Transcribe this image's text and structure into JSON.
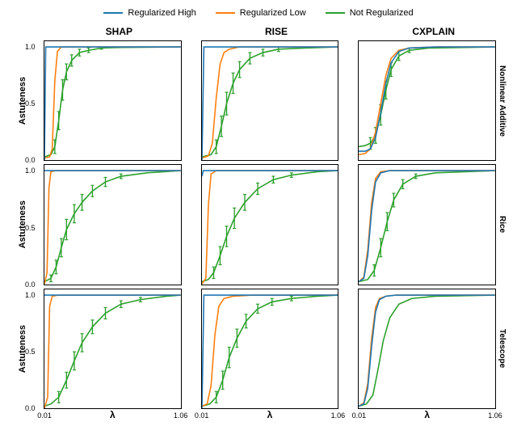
{
  "legend": {
    "items": [
      {
        "label": "Regularized High",
        "color": "#1f77b4"
      },
      {
        "label": "Regularized Low",
        "color": "#ff7f0e"
      },
      {
        "label": "Not Regularized",
        "color": "#2ca02c"
      }
    ]
  },
  "layout": {
    "rows": [
      "Nonlinear Additive",
      "Rice",
      "Telescope"
    ],
    "cols": [
      "SHAP",
      "RISE",
      "CXPLAIN"
    ],
    "ylabel": "Astuteness",
    "xlabel": "λ",
    "ylim": [
      0.0,
      1.05
    ],
    "xlim": [
      0.01,
      1.06
    ],
    "yticks": [
      0.0,
      0.5,
      1.0
    ],
    "ytick_labels": [
      "0.0",
      "0.5",
      "1.0"
    ],
    "xticks_labels": [
      "0.01",
      "1.06"
    ],
    "series_colors": {
      "high": "#1f77b4",
      "low": "#ff7f0e",
      "not": "#2ca02c"
    },
    "line_width": 1.6,
    "error_bar_color": "#2ca02c",
    "background_color": "#ffffff"
  },
  "panels": [
    {
      "row": 0,
      "col": 0,
      "series": {
        "high": [
          [
            0.01,
            0.0
          ],
          [
            0.02,
            1.0
          ],
          [
            1.06,
            1.0
          ]
        ],
        "low": [
          [
            0.01,
            0.02
          ],
          [
            0.05,
            0.03
          ],
          [
            0.07,
            0.1
          ],
          [
            0.09,
            0.7
          ],
          [
            0.11,
            0.96
          ],
          [
            0.14,
            1.0
          ],
          [
            1.06,
            1.0
          ]
        ],
        "not": [
          [
            0.01,
            0.03
          ],
          [
            0.06,
            0.05
          ],
          [
            0.09,
            0.12
          ],
          [
            0.12,
            0.35
          ],
          [
            0.15,
            0.62
          ],
          [
            0.18,
            0.78
          ],
          [
            0.22,
            0.88
          ],
          [
            0.28,
            0.95
          ],
          [
            0.35,
            0.97
          ],
          [
            0.45,
            0.99
          ],
          [
            0.6,
            0.995
          ],
          [
            1.06,
            1.0
          ]
        ]
      },
      "error_bars": [
        [
          0.09,
          0.12,
          0.06
        ],
        [
          0.12,
          0.35,
          0.08
        ],
        [
          0.15,
          0.62,
          0.09
        ],
        [
          0.18,
          0.78,
          0.07
        ],
        [
          0.22,
          0.88,
          0.05
        ],
        [
          0.28,
          0.95,
          0.03
        ],
        [
          0.35,
          0.97,
          0.02
        ],
        [
          0.45,
          0.99,
          0.01
        ]
      ]
    },
    {
      "row": 0,
      "col": 1,
      "series": {
        "high": [
          [
            0.01,
            0.0
          ],
          [
            0.025,
            1.0
          ],
          [
            1.06,
            1.0
          ]
        ],
        "low": [
          [
            0.01,
            0.02
          ],
          [
            0.06,
            0.04
          ],
          [
            0.09,
            0.15
          ],
          [
            0.12,
            0.55
          ],
          [
            0.15,
            0.85
          ],
          [
            0.18,
            0.95
          ],
          [
            0.22,
            0.98
          ],
          [
            0.3,
            1.0
          ],
          [
            1.06,
            1.0
          ]
        ],
        "not": [
          [
            0.01,
            0.03
          ],
          [
            0.08,
            0.05
          ],
          [
            0.12,
            0.12
          ],
          [
            0.16,
            0.3
          ],
          [
            0.2,
            0.5
          ],
          [
            0.25,
            0.68
          ],
          [
            0.3,
            0.8
          ],
          [
            0.38,
            0.9
          ],
          [
            0.48,
            0.95
          ],
          [
            0.6,
            0.98
          ],
          [
            0.8,
            0.99
          ],
          [
            1.06,
            1.0
          ]
        ]
      },
      "error_bars": [
        [
          0.12,
          0.12,
          0.06
        ],
        [
          0.16,
          0.3,
          0.09
        ],
        [
          0.2,
          0.5,
          0.1
        ],
        [
          0.25,
          0.68,
          0.09
        ],
        [
          0.3,
          0.8,
          0.07
        ],
        [
          0.38,
          0.9,
          0.05
        ],
        [
          0.48,
          0.95,
          0.03
        ],
        [
          0.6,
          0.98,
          0.02
        ]
      ]
    },
    {
      "row": 0,
      "col": 2,
      "series": {
        "high": [
          [
            0.01,
            0.08
          ],
          [
            0.06,
            0.08
          ],
          [
            0.1,
            0.1
          ],
          [
            0.14,
            0.2
          ],
          [
            0.18,
            0.42
          ],
          [
            0.22,
            0.68
          ],
          [
            0.26,
            0.86
          ],
          [
            0.32,
            0.96
          ],
          [
            0.4,
            0.99
          ],
          [
            0.6,
            1.0
          ],
          [
            1.06,
            1.0
          ]
        ],
        "low": [
          [
            0.01,
            0.05
          ],
          [
            0.06,
            0.06
          ],
          [
            0.1,
            0.1
          ],
          [
            0.14,
            0.25
          ],
          [
            0.18,
            0.5
          ],
          [
            0.22,
            0.75
          ],
          [
            0.26,
            0.9
          ],
          [
            0.32,
            0.97
          ],
          [
            0.4,
            0.99
          ],
          [
            0.6,
            1.0
          ],
          [
            1.06,
            1.0
          ]
        ],
        "not": [
          [
            0.01,
            0.12
          ],
          [
            0.06,
            0.13
          ],
          [
            0.1,
            0.15
          ],
          [
            0.14,
            0.22
          ],
          [
            0.18,
            0.4
          ],
          [
            0.22,
            0.62
          ],
          [
            0.26,
            0.8
          ],
          [
            0.32,
            0.92
          ],
          [
            0.4,
            0.97
          ],
          [
            0.55,
            0.99
          ],
          [
            1.06,
            1.0
          ]
        ]
      },
      "error_bars": [
        [
          0.1,
          0.15,
          0.05
        ],
        [
          0.14,
          0.22,
          0.07
        ],
        [
          0.18,
          0.4,
          0.09
        ],
        [
          0.22,
          0.62,
          0.08
        ],
        [
          0.26,
          0.8,
          0.06
        ],
        [
          0.32,
          0.92,
          0.04
        ],
        [
          0.4,
          0.97,
          0.02
        ]
      ]
    },
    {
      "row": 1,
      "col": 0,
      "series": {
        "high": [
          [
            0.01,
            1.0
          ],
          [
            1.06,
            1.0
          ]
        ],
        "low": [
          [
            0.01,
            0.0
          ],
          [
            0.03,
            0.1
          ],
          [
            0.045,
            0.85
          ],
          [
            0.06,
            0.99
          ],
          [
            0.1,
            1.0
          ],
          [
            1.06,
            1.0
          ]
        ],
        "not": [
          [
            0.01,
            0.02
          ],
          [
            0.06,
            0.05
          ],
          [
            0.1,
            0.15
          ],
          [
            0.14,
            0.32
          ],
          [
            0.18,
            0.48
          ],
          [
            0.24,
            0.62
          ],
          [
            0.3,
            0.72
          ],
          [
            0.38,
            0.82
          ],
          [
            0.48,
            0.9
          ],
          [
            0.6,
            0.95
          ],
          [
            0.8,
            0.98
          ],
          [
            1.06,
            1.0
          ]
        ]
      },
      "error_bars": [
        [
          0.06,
          0.05,
          0.03
        ],
        [
          0.1,
          0.15,
          0.06
        ],
        [
          0.14,
          0.32,
          0.08
        ],
        [
          0.18,
          0.48,
          0.09
        ],
        [
          0.24,
          0.62,
          0.08
        ],
        [
          0.3,
          0.72,
          0.07
        ],
        [
          0.38,
          0.82,
          0.05
        ],
        [
          0.48,
          0.9,
          0.04
        ],
        [
          0.6,
          0.95,
          0.02
        ]
      ]
    },
    {
      "row": 1,
      "col": 1,
      "series": {
        "high": [
          [
            0.01,
            0.95
          ],
          [
            0.02,
            1.0
          ],
          [
            1.06,
            1.0
          ]
        ],
        "low": [
          [
            0.01,
            0.0
          ],
          [
            0.04,
            0.05
          ],
          [
            0.06,
            0.7
          ],
          [
            0.08,
            0.97
          ],
          [
            0.12,
            1.0
          ],
          [
            1.06,
            1.0
          ]
        ],
        "not": [
          [
            0.01,
            0.02
          ],
          [
            0.06,
            0.04
          ],
          [
            0.1,
            0.1
          ],
          [
            0.15,
            0.25
          ],
          [
            0.2,
            0.42
          ],
          [
            0.26,
            0.58
          ],
          [
            0.34,
            0.72
          ],
          [
            0.44,
            0.84
          ],
          [
            0.56,
            0.92
          ],
          [
            0.7,
            0.96
          ],
          [
            0.9,
            0.99
          ],
          [
            1.06,
            1.0
          ]
        ]
      },
      "error_bars": [
        [
          0.1,
          0.1,
          0.05
        ],
        [
          0.15,
          0.25,
          0.08
        ],
        [
          0.2,
          0.42,
          0.09
        ],
        [
          0.26,
          0.58,
          0.09
        ],
        [
          0.34,
          0.72,
          0.07
        ],
        [
          0.44,
          0.84,
          0.05
        ],
        [
          0.56,
          0.92,
          0.03
        ],
        [
          0.7,
          0.96,
          0.02
        ]
      ]
    },
    {
      "row": 1,
      "col": 2,
      "series": {
        "high": [
          [
            0.01,
            0.02
          ],
          [
            0.05,
            0.05
          ],
          [
            0.08,
            0.25
          ],
          [
            0.11,
            0.65
          ],
          [
            0.14,
            0.9
          ],
          [
            0.18,
            0.98
          ],
          [
            0.25,
            1.0
          ],
          [
            1.06,
            1.0
          ]
        ],
        "low": [
          [
            0.01,
            0.02
          ],
          [
            0.05,
            0.06
          ],
          [
            0.08,
            0.3
          ],
          [
            0.11,
            0.72
          ],
          [
            0.14,
            0.93
          ],
          [
            0.18,
            0.99
          ],
          [
            0.25,
            1.0
          ],
          [
            1.06,
            1.0
          ]
        ],
        "not": [
          [
            0.01,
            0.02
          ],
          [
            0.08,
            0.04
          ],
          [
            0.13,
            0.12
          ],
          [
            0.18,
            0.32
          ],
          [
            0.23,
            0.55
          ],
          [
            0.28,
            0.74
          ],
          [
            0.35,
            0.88
          ],
          [
            0.45,
            0.95
          ],
          [
            0.6,
            0.98
          ],
          [
            1.06,
            1.0
          ]
        ]
      },
      "error_bars": [
        [
          0.13,
          0.12,
          0.05
        ],
        [
          0.18,
          0.32,
          0.08
        ],
        [
          0.23,
          0.55,
          0.08
        ],
        [
          0.28,
          0.74,
          0.06
        ],
        [
          0.35,
          0.88,
          0.04
        ],
        [
          0.45,
          0.95,
          0.02
        ]
      ]
    },
    {
      "row": 2,
      "col": 0,
      "series": {
        "high": [
          [
            0.01,
            1.0
          ],
          [
            1.06,
            1.0
          ]
        ],
        "low": [
          [
            0.01,
            0.0
          ],
          [
            0.035,
            0.1
          ],
          [
            0.05,
            0.9
          ],
          [
            0.07,
            0.99
          ],
          [
            0.12,
            1.0
          ],
          [
            1.06,
            1.0
          ]
        ],
        "not": [
          [
            0.01,
            0.02
          ],
          [
            0.06,
            0.04
          ],
          [
            0.12,
            0.1
          ],
          [
            0.18,
            0.25
          ],
          [
            0.24,
            0.42
          ],
          [
            0.3,
            0.58
          ],
          [
            0.38,
            0.72
          ],
          [
            0.48,
            0.84
          ],
          [
            0.6,
            0.92
          ],
          [
            0.75,
            0.96
          ],
          [
            0.95,
            0.99
          ],
          [
            1.06,
            1.0
          ]
        ]
      },
      "error_bars": [
        [
          0.12,
          0.1,
          0.05
        ],
        [
          0.18,
          0.25,
          0.07
        ],
        [
          0.24,
          0.42,
          0.08
        ],
        [
          0.3,
          0.58,
          0.08
        ],
        [
          0.38,
          0.72,
          0.06
        ],
        [
          0.48,
          0.84,
          0.05
        ],
        [
          0.6,
          0.92,
          0.03
        ],
        [
          0.75,
          0.96,
          0.02
        ]
      ]
    },
    {
      "row": 2,
      "col": 1,
      "series": {
        "high": [
          [
            0.01,
            0.0
          ],
          [
            0.025,
            1.0
          ],
          [
            1.06,
            1.0
          ]
        ],
        "low": [
          [
            0.01,
            0.02
          ],
          [
            0.05,
            0.04
          ],
          [
            0.08,
            0.2
          ],
          [
            0.11,
            0.65
          ],
          [
            0.14,
            0.9
          ],
          [
            0.18,
            0.97
          ],
          [
            0.25,
            0.99
          ],
          [
            0.4,
            1.0
          ],
          [
            1.06,
            1.0
          ]
        ],
        "not": [
          [
            0.01,
            0.02
          ],
          [
            0.07,
            0.04
          ],
          [
            0.12,
            0.1
          ],
          [
            0.17,
            0.25
          ],
          [
            0.22,
            0.45
          ],
          [
            0.28,
            0.62
          ],
          [
            0.35,
            0.77
          ],
          [
            0.44,
            0.88
          ],
          [
            0.55,
            0.94
          ],
          [
            0.7,
            0.97
          ],
          [
            0.9,
            0.99
          ],
          [
            1.06,
            1.0
          ]
        ]
      },
      "error_bars": [
        [
          0.12,
          0.1,
          0.05
        ],
        [
          0.17,
          0.25,
          0.08
        ],
        [
          0.22,
          0.45,
          0.09
        ],
        [
          0.28,
          0.62,
          0.08
        ],
        [
          0.35,
          0.77,
          0.06
        ],
        [
          0.44,
          0.88,
          0.04
        ],
        [
          0.55,
          0.94,
          0.03
        ],
        [
          0.7,
          0.97,
          0.02
        ]
      ]
    },
    {
      "row": 2,
      "col": 2,
      "series": {
        "high": [
          [
            0.01,
            0.02
          ],
          [
            0.05,
            0.04
          ],
          [
            0.08,
            0.18
          ],
          [
            0.11,
            0.55
          ],
          [
            0.14,
            0.85
          ],
          [
            0.17,
            0.96
          ],
          [
            0.22,
            0.99
          ],
          [
            0.3,
            1.0
          ],
          [
            1.06,
            1.0
          ]
        ],
        "low": [
          [
            0.01,
            0.02
          ],
          [
            0.05,
            0.05
          ],
          [
            0.08,
            0.22
          ],
          [
            0.11,
            0.62
          ],
          [
            0.14,
            0.89
          ],
          [
            0.17,
            0.97
          ],
          [
            0.22,
            0.99
          ],
          [
            0.3,
            1.0
          ],
          [
            1.06,
            1.0
          ]
        ],
        "not": [
          [
            0.01,
            0.02
          ],
          [
            0.07,
            0.04
          ],
          [
            0.12,
            0.12
          ],
          [
            0.16,
            0.35
          ],
          [
            0.2,
            0.6
          ],
          [
            0.25,
            0.8
          ],
          [
            0.32,
            0.92
          ],
          [
            0.42,
            0.97
          ],
          [
            0.6,
            0.99
          ],
          [
            1.06,
            1.0
          ]
        ]
      },
      "error_bars": []
    }
  ]
}
